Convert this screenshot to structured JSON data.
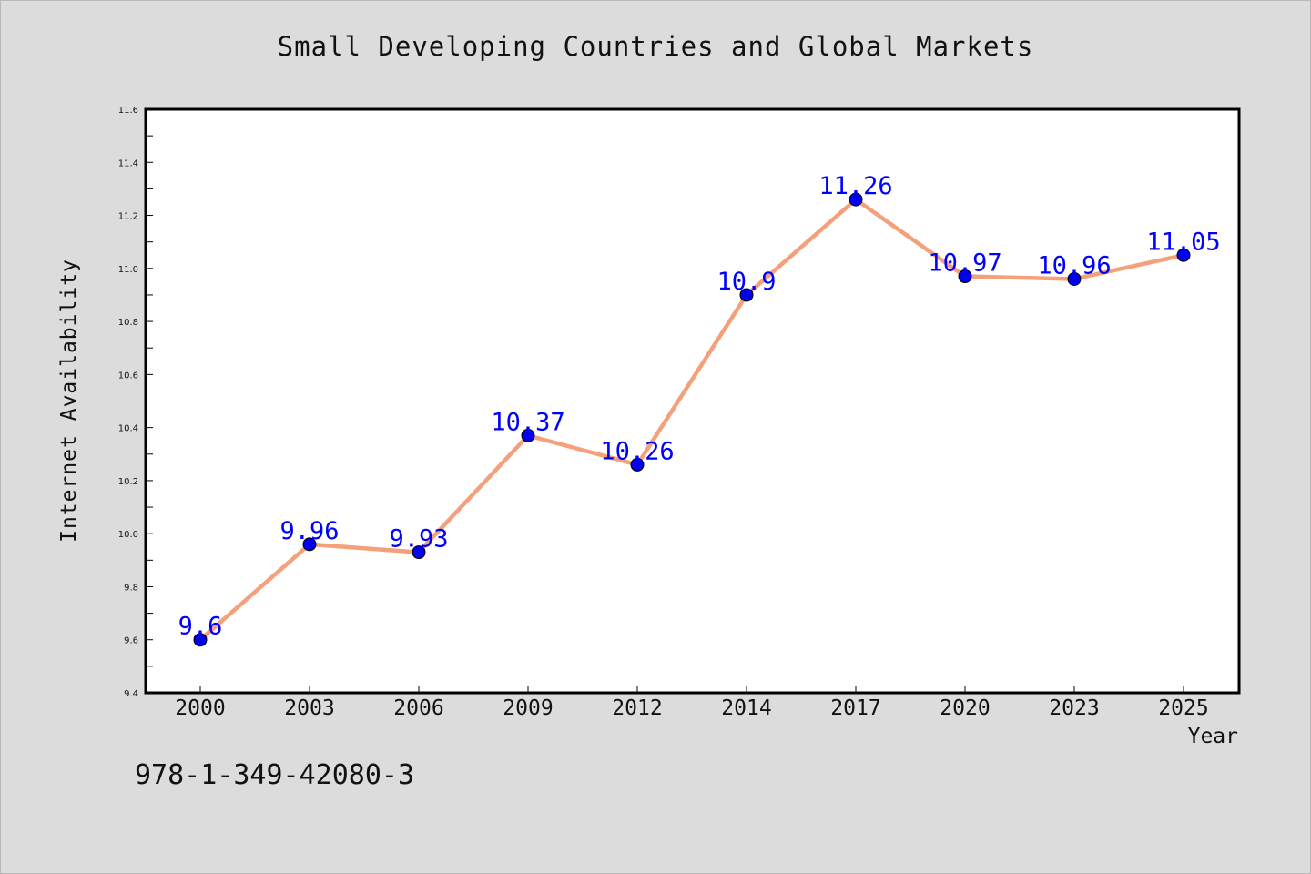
{
  "footer": {
    "isbn": "978-1-349-42080-3"
  },
  "chart_data": {
    "type": "line",
    "title": "Small Developing Countries and Global Markets",
    "xlabel": "Year",
    "ylabel": "Internet Availability",
    "categories": [
      "2000",
      "2003",
      "2006",
      "2009",
      "2012",
      "2014",
      "2017",
      "2020",
      "2023",
      "2025"
    ],
    "series": [
      {
        "values": [
          9.6,
          9.96,
          9.93,
          10.37,
          10.26,
          10.9,
          11.26,
          10.97,
          10.96,
          11.05
        ],
        "labels": [
          "9.6",
          "9.96",
          "9.93",
          "10.37",
          "10.26",
          "10.9",
          "11.26",
          "10.97",
          "10.96",
          "11.05"
        ],
        "line_color": "#f4a07a",
        "marker_color": "#0000ee",
        "label_color": "#0000ff"
      }
    ],
    "ylim": [
      9.4,
      11.6
    ],
    "yticks": [
      "9.4",
      "9.6",
      "9.8",
      "10.0",
      "10.2",
      "10.4",
      "10.6",
      "10.8",
      "11.0",
      "11.2",
      "11.4",
      "11.6"
    ],
    "grid": false,
    "legend": false
  }
}
